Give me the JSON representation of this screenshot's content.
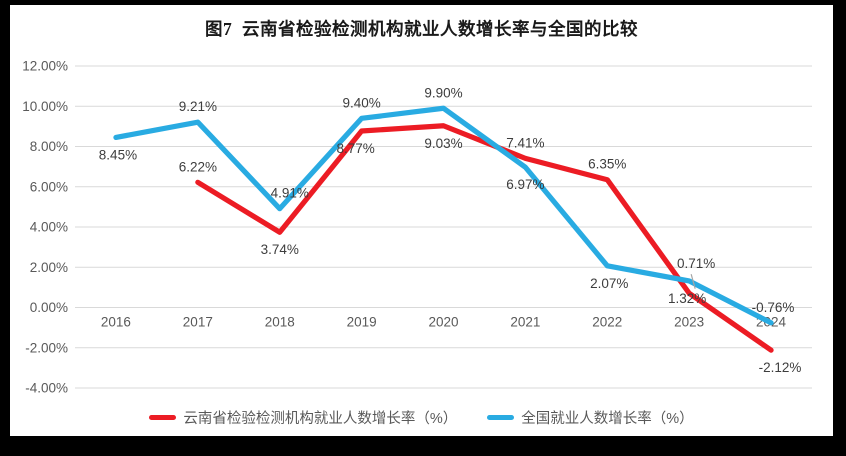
{
  "chart_data": {
    "type": "line",
    "title": "图7  云南省检验检测机构就业人数增长率与全国的比较",
    "categories": [
      "2016",
      "2017",
      "2018",
      "2019",
      "2020",
      "2021",
      "2022",
      "2023",
      "2024"
    ],
    "series": [
      {
        "name": "云南省检验检测机构就业人数增长率（%）",
        "color": "#ec1c24",
        "values": [
          null,
          6.22,
          3.74,
          8.77,
          9.03,
          7.41,
          6.35,
          0.71,
          -2.12
        ],
        "data_labels": [
          null,
          "6.22%",
          "3.74%",
          "8.77%",
          "9.03%",
          "7.41%",
          "6.35%",
          "0.71%",
          "-2.12%"
        ],
        "label_pos": [
          null,
          "above",
          "below",
          "below",
          "below",
          "above",
          "above",
          "leader",
          "below"
        ]
      },
      {
        "name": "全国就业人数增长率（%）",
        "color": "#29abe2",
        "values": [
          8.45,
          9.21,
          4.91,
          9.4,
          9.9,
          6.97,
          2.07,
          1.32,
          -0.76
        ],
        "data_labels": [
          "8.45%",
          "9.21%",
          "4.91%",
          "9.40%",
          "9.90%",
          "6.97%",
          "2.07%",
          "1.32%",
          "-0.76%"
        ],
        "label_pos": [
          "below",
          "above",
          "above",
          "above",
          "above",
          "below",
          "below",
          "below",
          "above"
        ]
      }
    ],
    "ylim": [
      -4,
      12
    ],
    "ytick_step": 2,
    "yticks": [
      "12.00%",
      "10.00%",
      "8.00%",
      "6.00%",
      "4.00%",
      "2.00%",
      "0.00%",
      "-2.00%",
      "-4.00%"
    ],
    "grid": true,
    "legend_position": "bottom",
    "colors": {
      "grid": "#d9d9d9",
      "axis_text": "#595959",
      "label_text": "#3d3d3d",
      "leader": "#a6a6a6",
      "background": "#ffffff",
      "frame": "#000000"
    }
  }
}
